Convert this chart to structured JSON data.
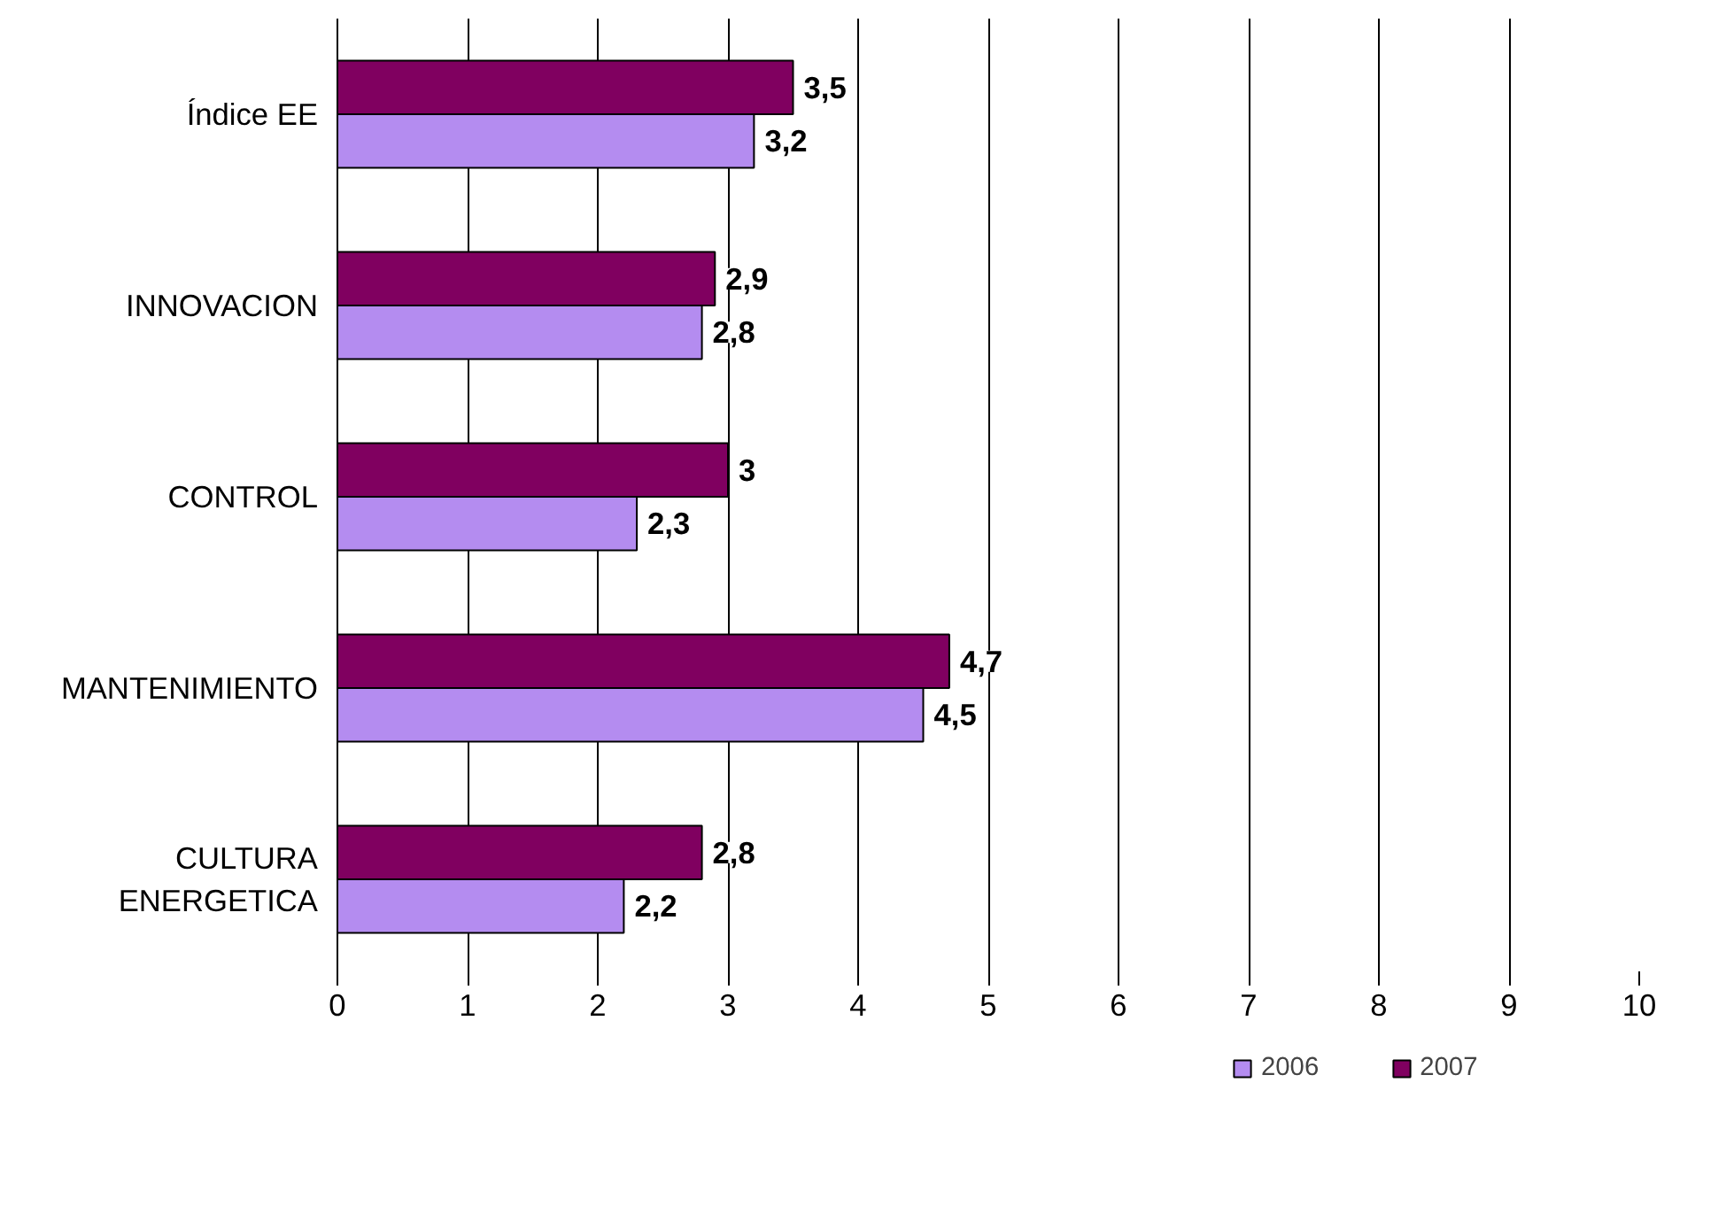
{
  "chart_data": {
    "type": "bar",
    "orientation": "horizontal",
    "categories": [
      "Índice EE",
      "INNOVACION",
      "CONTROL",
      "MANTENIMIENTO",
      "CULTURA\nENERGETICA"
    ],
    "series": [
      {
        "name": "2006",
        "color": "#b48cf0",
        "values": [
          3.2,
          2.8,
          2.3,
          4.5,
          2.2
        ],
        "value_labels": [
          "3,2",
          "2,8",
          "2,3",
          "4,5",
          "2,2"
        ]
      },
      {
        "name": "2007",
        "color": "#800060",
        "values": [
          3.5,
          2.9,
          3,
          4.7,
          2.8
        ],
        "value_labels": [
          "3,5",
          "2,9",
          "3",
          "4,7",
          "2,8"
        ]
      }
    ],
    "xlim": [
      0,
      10
    ],
    "xticks": [
      0,
      1,
      2,
      3,
      4,
      5,
      6,
      7,
      8,
      9,
      10
    ],
    "grid": "x",
    "legend": "bottom"
  }
}
